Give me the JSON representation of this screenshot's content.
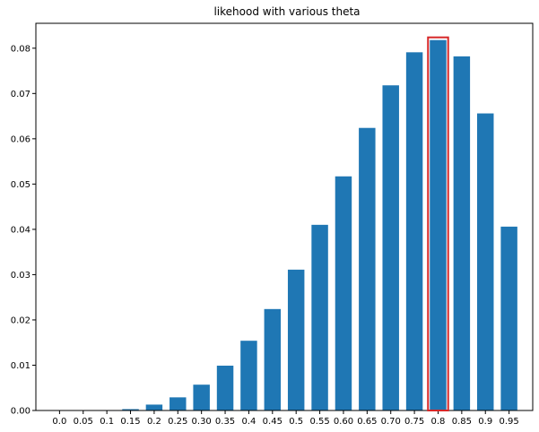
{
  "chart_data": {
    "type": "bar",
    "title": "likehood with various theta",
    "xlabel": "",
    "ylabel": "",
    "categories": [
      "0.0",
      "0.05",
      "0.1",
      "0.15",
      "0.2",
      "0.25",
      "0.30",
      "0.35",
      "0.4",
      "0.45",
      "0.5",
      "0.55",
      "0.60",
      "0.65",
      "0.70",
      "0.75",
      "0.8",
      "0.85",
      "0.9",
      "0.95"
    ],
    "values": [
      0.0,
      0.0,
      0.0001,
      0.0003,
      0.0013,
      0.0029,
      0.0057,
      0.0099,
      0.0154,
      0.0224,
      0.0311,
      0.041,
      0.0517,
      0.0624,
      0.0718,
      0.0791,
      0.0818,
      0.0782,
      0.0656,
      0.0406
    ],
    "ylim": [
      0,
      0.0855
    ],
    "yticks": [
      "0.00",
      "0.01",
      "0.02",
      "0.03",
      "0.04",
      "0.05",
      "0.06",
      "0.07",
      "0.08"
    ],
    "ytick_values": [
      0,
      0.01,
      0.02,
      0.03,
      0.04,
      0.05,
      0.06,
      0.07,
      0.08
    ],
    "bar_color": "#1f77b4",
    "highlight": {
      "category": "0.8",
      "color": "#d62728"
    },
    "grid": false,
    "legend": "none"
  }
}
